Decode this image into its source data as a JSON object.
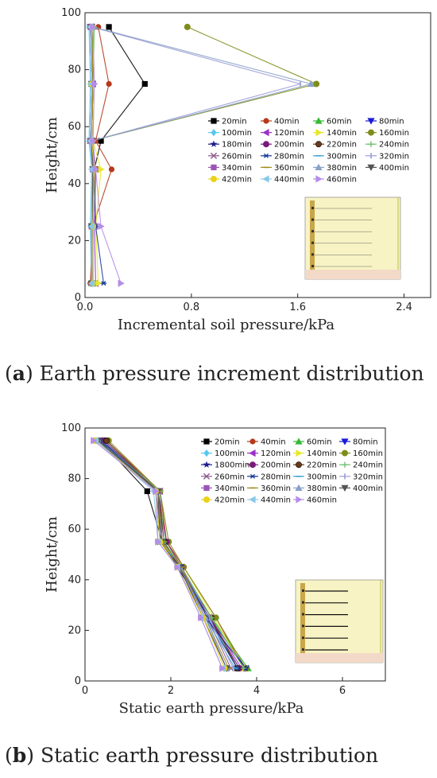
{
  "captions": [
    {
      "letter": "a",
      "text": " Earth pressure increment distribution"
    },
    {
      "letter": "b",
      "text": " Static earth pressure distribution"
    }
  ],
  "colors": {
    "axis": "#222222",
    "inset_soil": "#f7f3c4",
    "inset_base": "#f3d9c8",
    "inset_wall": "#c9a64a"
  },
  "chart_data": [
    {
      "type": "line",
      "orientation": "profile",
      "xlabel": "Incremental soil pressure/kPa",
      "ylabel": "Height/cm",
      "xlim": [
        0,
        2.6
      ],
      "ylim": [
        0,
        100
      ],
      "xticks": [
        "0.0",
        "0.8",
        "1.6",
        "2.4"
      ],
      "yticks": [
        "0",
        "20",
        "40",
        "60",
        "80",
        "100"
      ],
      "legend": "right",
      "y": [
        95,
        75,
        55,
        45,
        25,
        5
      ],
      "series": [
        {
          "name": "20min",
          "color": "#000000",
          "marker": "square",
          "values": [
            0.18,
            0.45,
            0.12,
            0.07,
            0.06,
            0.05
          ]
        },
        {
          "name": "40min",
          "color": "#b5391a",
          "marker": "circle",
          "values": [
            0.1,
            0.18,
            0.08,
            0.2,
            0.06,
            0.04
          ]
        },
        {
          "name": "60min",
          "color": "#33bb33",
          "marker": "triangle",
          "values": [
            0.06,
            0.05,
            0.04,
            0.07,
            0.06,
            0.05
          ]
        },
        {
          "name": "80min",
          "color": "#1a1ad6",
          "marker": "tri-down",
          "values": [
            0.04,
            0.05,
            0.04,
            0.06,
            0.05,
            0.06
          ]
        },
        {
          "name": "100min",
          "color": "#55c8f0",
          "marker": "diamond",
          "values": [
            0.03,
            0.04,
            0.03,
            0.05,
            0.04,
            0.05
          ]
        },
        {
          "name": "120min",
          "color": "#9b30c8",
          "marker": "tri-left",
          "values": [
            0.05,
            0.06,
            0.05,
            0.08,
            0.07,
            0.08
          ]
        },
        {
          "name": "140min",
          "color": "#e8e82a",
          "marker": "tri-right",
          "values": [
            0.06,
            0.07,
            0.06,
            0.12,
            0.08,
            0.1
          ]
        },
        {
          "name": "160min",
          "color": "#7f8c1a",
          "marker": "hexagon",
          "values": [
            0.77,
            1.74,
            0.05,
            0.06,
            0.06,
            0.06
          ]
        },
        {
          "name": "180min",
          "color": "#1a1a8c",
          "marker": "star",
          "values": [
            0.05,
            0.06,
            0.05,
            0.06,
            0.05,
            0.05
          ]
        },
        {
          "name": "200min",
          "color": "#7a1a7a",
          "marker": "pentagon",
          "values": [
            0.04,
            0.05,
            0.04,
            0.06,
            0.05,
            0.05
          ]
        },
        {
          "name": "220min",
          "color": "#6b3a1a",
          "marker": "half-circle",
          "values": [
            0.05,
            0.05,
            0.05,
            0.07,
            0.06,
            0.06
          ]
        },
        {
          "name": "240min",
          "color": "#6cc06c",
          "marker": "plus",
          "values": [
            0.07,
            0.06,
            0.05,
            0.07,
            0.06,
            0.05
          ]
        },
        {
          "name": "260min",
          "color": "#8c5a8c",
          "marker": "x",
          "values": [
            0.05,
            0.06,
            0.05,
            0.06,
            0.05,
            0.06
          ]
        },
        {
          "name": "280min",
          "color": "#1a3a9b",
          "marker": "asterisk",
          "values": [
            0.05,
            0.05,
            0.05,
            0.07,
            0.08,
            0.14
          ]
        },
        {
          "name": "300min",
          "color": "#3aa0d6",
          "marker": "dash",
          "values": [
            0.04,
            0.05,
            0.04,
            0.06,
            0.05,
            0.05
          ]
        },
        {
          "name": "320min",
          "color": "#9a9ad6",
          "marker": "vbar",
          "values": [
            0.05,
            1.62,
            0.05,
            0.06,
            0.05,
            0.05
          ]
        },
        {
          "name": "340min",
          "color": "#9b55b5",
          "marker": "square",
          "values": [
            0.04,
            0.05,
            0.04,
            0.06,
            0.05,
            0.06
          ]
        },
        {
          "name": "360min",
          "color": "#a08c1a",
          "marker": "dash",
          "values": [
            0.05,
            0.06,
            0.05,
            0.06,
            0.05,
            0.05
          ]
        },
        {
          "name": "380min",
          "color": "#8aa0c8",
          "marker": "triangle",
          "values": [
            0.06,
            1.7,
            0.05,
            0.07,
            0.06,
            0.05
          ]
        },
        {
          "name": "400min",
          "color": "#555555",
          "marker": "tri-down",
          "values": [
            0.05,
            0.05,
            0.05,
            0.06,
            0.05,
            0.05
          ]
        },
        {
          "name": "420min",
          "color": "#e8d21a",
          "marker": "hexagon",
          "values": [
            0.05,
            0.05,
            0.05,
            0.07,
            0.06,
            0.06
          ]
        },
        {
          "name": "440min",
          "color": "#88c8e8",
          "marker": "tri-left",
          "values": [
            0.04,
            0.05,
            0.04,
            0.05,
            0.05,
            0.05
          ]
        },
        {
          "name": "460min",
          "color": "#b58ce8",
          "marker": "tri-right",
          "values": [
            0.06,
            0.07,
            0.06,
            0.08,
            0.12,
            0.27
          ]
        }
      ]
    },
    {
      "type": "line",
      "orientation": "profile",
      "xlabel": "Static earth pressure/kPa",
      "ylabel": "Height/cm",
      "xlim": [
        0,
        7
      ],
      "ylim": [
        0,
        100
      ],
      "xticks": [
        "0",
        "2",
        "4",
        "6"
      ],
      "yticks": [
        "0",
        "20",
        "40",
        "60",
        "80",
        "100"
      ],
      "legend": "top-right",
      "y": [
        95,
        75,
        55,
        45,
        25,
        5
      ],
      "series": [
        {
          "name": "20min",
          "color": "#000000",
          "marker": "square",
          "values": [
            0.35,
            1.45,
            1.8,
            2.15,
            2.9,
            3.55
          ]
        },
        {
          "name": "40min",
          "color": "#b5391a",
          "marker": "circle",
          "values": [
            0.5,
            1.75,
            1.9,
            2.3,
            3.05,
            3.7
          ]
        },
        {
          "name": "60min",
          "color": "#33bb33",
          "marker": "triangle",
          "values": [
            0.45,
            1.7,
            1.85,
            2.2,
            2.95,
            3.8
          ]
        },
        {
          "name": "80min",
          "color": "#1a1ad6",
          "marker": "tri-down",
          "values": [
            0.4,
            1.65,
            1.8,
            2.2,
            2.9,
            3.75
          ]
        },
        {
          "name": "100min",
          "color": "#55c8f0",
          "marker": "diamond",
          "values": [
            0.3,
            1.7,
            1.75,
            2.25,
            2.85,
            3.6
          ]
        },
        {
          "name": "120min",
          "color": "#9b30c8",
          "marker": "tri-left",
          "values": [
            0.35,
            1.75,
            1.8,
            2.25,
            2.9,
            3.65
          ]
        },
        {
          "name": "140min",
          "color": "#e8e82a",
          "marker": "tri-right",
          "values": [
            0.3,
            1.7,
            1.75,
            2.3,
            3.0,
            3.7
          ]
        },
        {
          "name": "160min",
          "color": "#7f8c1a",
          "marker": "hexagon",
          "values": [
            0.55,
            1.75,
            1.95,
            2.3,
            3.05,
            3.75
          ]
        },
        {
          "name": "1800min",
          "color": "#1a1a8c",
          "marker": "star",
          "values": [
            0.4,
            1.7,
            1.85,
            2.2,
            2.8,
            3.75
          ]
        },
        {
          "name": "200min",
          "color": "#7a1a7a",
          "marker": "pentagon",
          "values": [
            0.45,
            1.7,
            1.9,
            2.25,
            2.9,
            3.6
          ]
        },
        {
          "name": "220min",
          "color": "#6b3a1a",
          "marker": "half-circle",
          "values": [
            0.5,
            1.7,
            1.85,
            2.2,
            2.95,
            3.55
          ]
        },
        {
          "name": "240min",
          "color": "#6cc06c",
          "marker": "plus",
          "values": [
            0.35,
            1.75,
            1.85,
            2.25,
            2.95,
            3.7
          ]
        },
        {
          "name": "260min",
          "color": "#8c5a8c",
          "marker": "x",
          "values": [
            0.3,
            1.65,
            1.75,
            2.2,
            2.85,
            3.4
          ]
        },
        {
          "name": "280min",
          "color": "#1a3a9b",
          "marker": "asterisk",
          "values": [
            0.35,
            1.7,
            1.8,
            2.25,
            2.85,
            3.55
          ]
        },
        {
          "name": "300min",
          "color": "#3aa0d6",
          "marker": "dash",
          "values": [
            0.3,
            1.65,
            1.75,
            2.2,
            2.8,
            3.5
          ]
        },
        {
          "name": "320min",
          "color": "#9a9ad6",
          "marker": "vbar",
          "values": [
            0.3,
            1.7,
            1.8,
            2.25,
            2.9,
            3.45
          ]
        },
        {
          "name": "340min",
          "color": "#9b55b5",
          "marker": "square",
          "values": [
            0.25,
            1.7,
            1.75,
            2.2,
            2.75,
            3.3
          ]
        },
        {
          "name": "360min",
          "color": "#a08c1a",
          "marker": "dash",
          "values": [
            0.3,
            1.7,
            1.8,
            2.25,
            2.8,
            3.35
          ]
        },
        {
          "name": "380min",
          "color": "#8aa0c8",
          "marker": "triangle",
          "values": [
            0.3,
            1.65,
            1.75,
            2.2,
            2.8,
            3.3
          ]
        },
        {
          "name": "400min",
          "color": "#555555",
          "marker": "tri-down",
          "values": [
            0.3,
            1.7,
            1.75,
            2.2,
            2.75,
            3.3
          ]
        },
        {
          "name": "420min",
          "color": "#e8d21a",
          "marker": "hexagon",
          "values": [
            0.25,
            1.65,
            1.75,
            2.15,
            2.75,
            3.25
          ]
        },
        {
          "name": "440min",
          "color": "#88c8e8",
          "marker": "tri-left",
          "values": [
            0.25,
            1.6,
            1.7,
            2.15,
            2.7,
            3.2
          ]
        },
        {
          "name": "460min",
          "color": "#b58ce8",
          "marker": "tri-right",
          "values": [
            0.2,
            1.65,
            1.7,
            2.15,
            2.7,
            3.2
          ]
        }
      ]
    }
  ]
}
